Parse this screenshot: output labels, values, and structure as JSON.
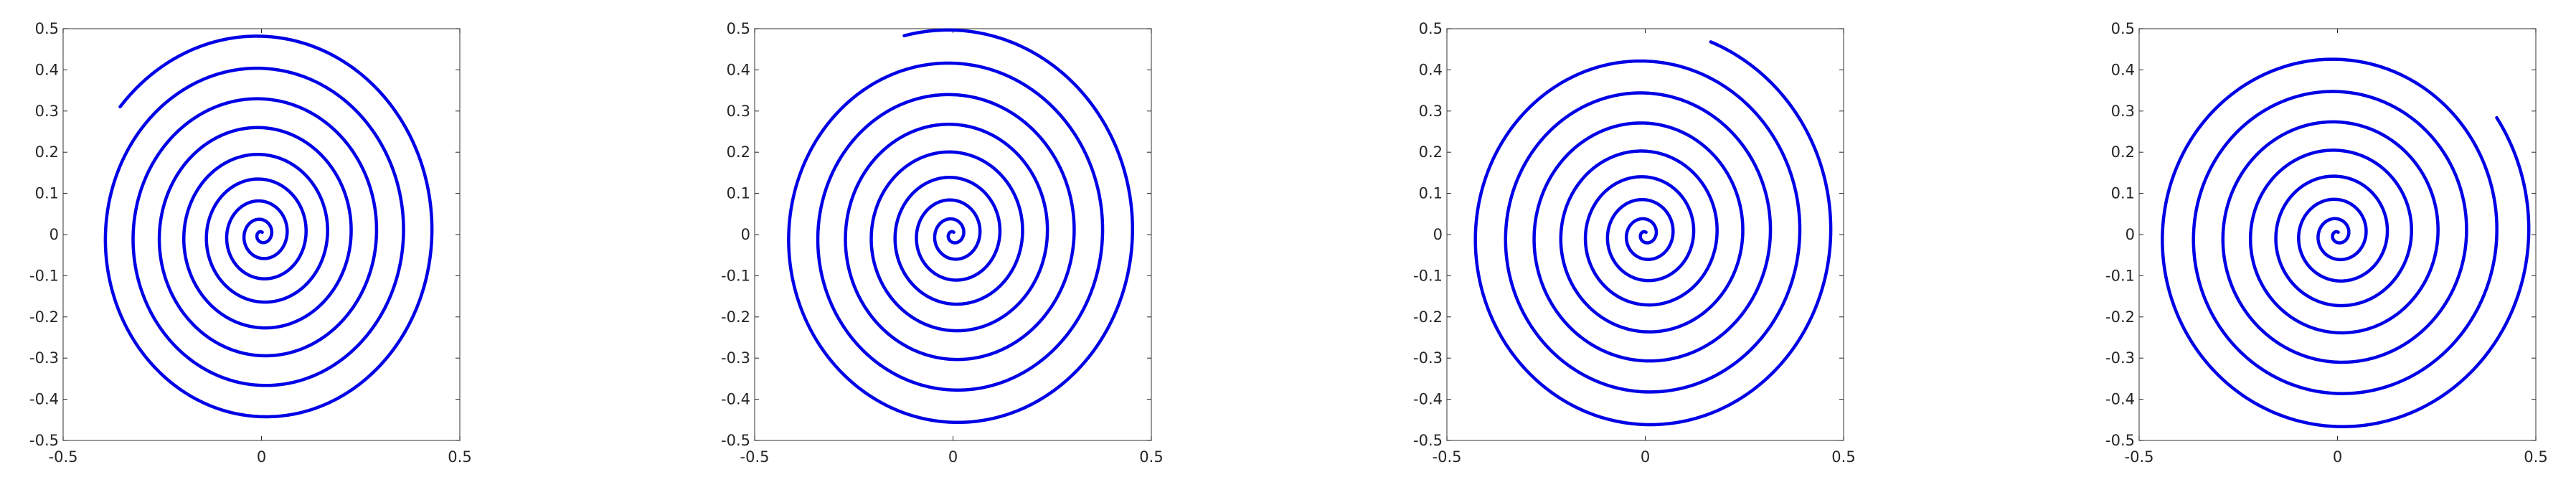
{
  "figure": {
    "background": "#ffffff"
  },
  "style": {
    "line_color": "#0000e6",
    "axis_color": "#262626",
    "box_color": "#555555"
  },
  "chart_data": [
    {
      "type": "line",
      "title": "",
      "xlabel": "",
      "ylabel": "",
      "xlim": [
        -0.5,
        0.5
      ],
      "ylim": [
        -0.5,
        0.5
      ],
      "grid": false,
      "legend": "none",
      "xticks": [
        -0.5,
        0,
        0.5
      ],
      "xtick_labels": [
        "-0.5",
        "0",
        "0.5"
      ],
      "yticks": [
        0.5,
        0.4,
        0.3,
        0.2,
        0.1,
        0,
        -0.1,
        -0.2,
        -0.3,
        -0.4,
        -0.5
      ],
      "ytick_labels": [
        "0.5",
        "0.4",
        "0.3",
        "0.2",
        "0.1",
        "0",
        "-0.1",
        "-0.2",
        "-0.3",
        "-0.4",
        "-0.5"
      ],
      "series": [
        {
          "kind": "spiral",
          "center": [
            0,
            0
          ],
          "r_end": 0.493,
          "angle_end_deg": 141,
          "turns": 8.2,
          "aspect": 0.93
        }
      ]
    },
    {
      "type": "line",
      "title": "",
      "xlabel": "",
      "ylabel": "",
      "xlim": [
        -0.5,
        0.5
      ],
      "ylim": [
        -0.5,
        0.5
      ],
      "grid": false,
      "legend": "none",
      "xticks": [
        -0.5,
        0,
        0.5
      ],
      "xtick_labels": [
        "-0.5",
        "0",
        "0.5"
      ],
      "yticks": [
        0.5,
        0.4,
        0.3,
        0.2,
        0.1,
        0,
        -0.1,
        -0.2,
        -0.3,
        -0.4,
        -0.5
      ],
      "ytick_labels": [
        "0.5",
        "0.4",
        "0.3",
        "0.2",
        "0.1",
        "0",
        "-0.1",
        "-0.2",
        "-0.3",
        "-0.4",
        "-0.5"
      ],
      "series": [
        {
          "kind": "spiral",
          "center": [
            0,
            0
          ],
          "r_end": 0.5,
          "angle_end_deg": 105,
          "turns": 8.1,
          "aspect": 0.95
        }
      ]
    },
    {
      "type": "line",
      "title": "",
      "xlabel": "",
      "ylabel": "",
      "xlim": [
        -0.5,
        0.5
      ],
      "ylim": [
        -0.5,
        0.5
      ],
      "grid": false,
      "legend": "none",
      "xticks": [
        -0.5,
        0,
        0.5
      ],
      "xtick_labels": [
        "-0.5",
        "0",
        "0.5"
      ],
      "yticks": [
        0.5,
        0.4,
        0.3,
        0.2,
        0.1,
        0,
        -0.1,
        -0.2,
        -0.3,
        -0.4,
        -0.5
      ],
      "ytick_labels": [
        "0.5",
        "0.4",
        "0.3",
        "0.2",
        "0.1",
        "0",
        "-0.1",
        "-0.2",
        "-0.3",
        "-0.4",
        "-0.5"
      ],
      "series": [
        {
          "kind": "spiral",
          "center": [
            0,
            0
          ],
          "r_end": 0.498,
          "angle_end_deg": 70,
          "turns": 8.0,
          "aspect": 0.97
        }
      ]
    },
    {
      "type": "line",
      "title": "",
      "xlabel": "",
      "ylabel": "",
      "xlim": [
        -0.5,
        0.5
      ],
      "ylim": [
        -0.5,
        0.5
      ],
      "grid": false,
      "legend": "none",
      "xticks": [
        -0.5,
        0,
        0.5
      ],
      "xtick_labels": [
        "-0.5",
        "0",
        "0.5"
      ],
      "yticks": [
        0.5,
        0.4,
        0.3,
        0.2,
        0.1,
        0,
        -0.1,
        -0.2,
        -0.3,
        -0.4,
        -0.5
      ],
      "ytick_labels": [
        "0.5",
        "0.4",
        "0.3",
        "0.2",
        "0.1",
        "0",
        "-0.1",
        "-0.2",
        "-0.3",
        "-0.4",
        "-0.5"
      ],
      "series": [
        {
          "kind": "spiral",
          "center": [
            0,
            0
          ],
          "r_end": 0.495,
          "angle_end_deg": 35,
          "turns": 7.9,
          "aspect": 0.99
        }
      ]
    }
  ]
}
